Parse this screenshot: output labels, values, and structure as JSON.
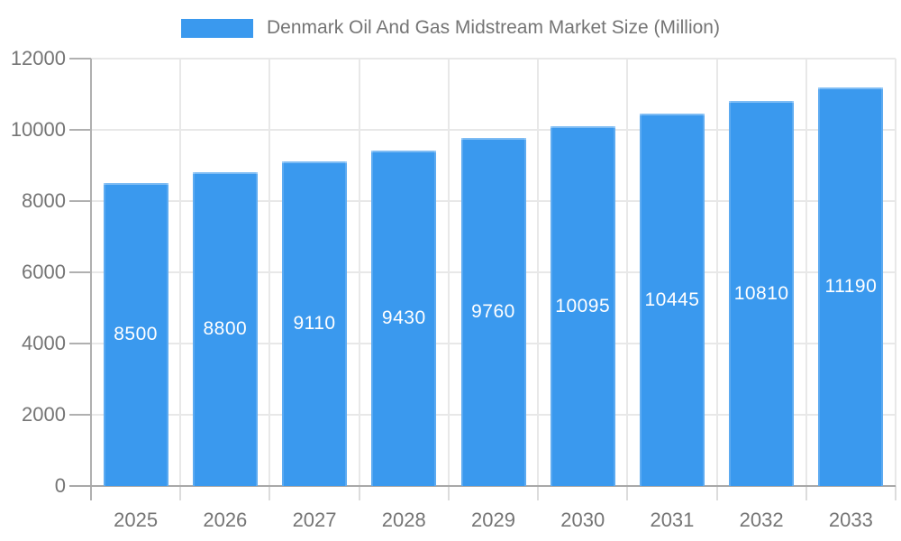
{
  "legend": {
    "label": "Denmark Oil And Gas Midstream Market Size (Million)"
  },
  "chart_data": {
    "type": "bar",
    "title": "Denmark Oil And Gas Midstream Market Size (Million)",
    "categories": [
      "2025",
      "2026",
      "2027",
      "2028",
      "2029",
      "2030",
      "2031",
      "2032",
      "2033"
    ],
    "values": [
      8500,
      8800,
      9110,
      9430,
      9760,
      10095,
      10445,
      10810,
      11190
    ],
    "xlabel": "",
    "ylabel": "",
    "ylim": [
      0,
      12000
    ],
    "yticks": [
      0,
      2000,
      4000,
      6000,
      8000,
      10000,
      12000
    ],
    "grid": true,
    "legend_position": "top-center",
    "bar_color": "#3A99EE",
    "bar_label_color": "#FFFFFF",
    "axis_text_color": "#757575",
    "gridline_color": "#E8E8E8"
  }
}
